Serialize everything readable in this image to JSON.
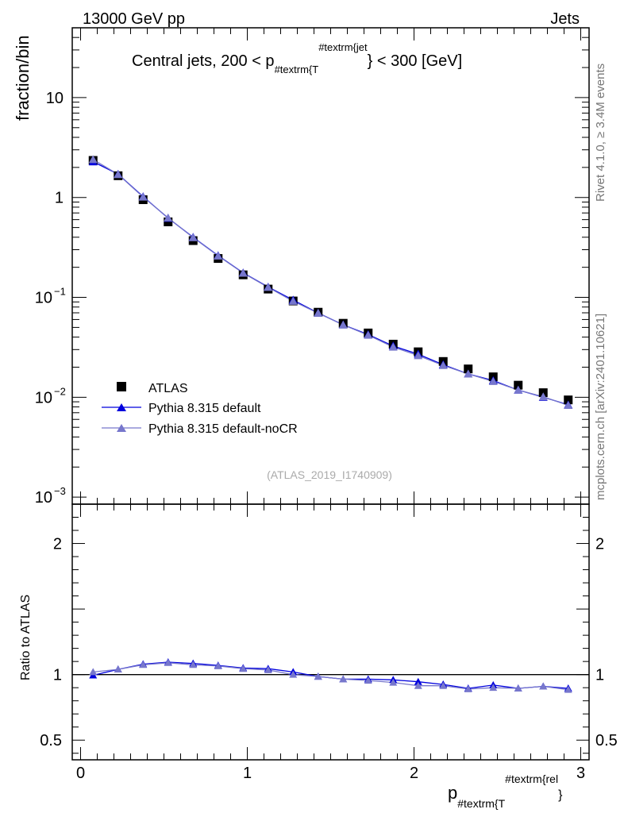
{
  "header": {
    "left_label": "13000 GeV pp",
    "right_label": "Jets"
  },
  "side_labels": {
    "rivet": "Rivet 4.1.0, ≥ 3.4M events",
    "mcplots": "mcplots.cern.ch [arXiv:2401.10621]"
  },
  "chart_data": [
    {
      "type": "scatter",
      "panel": "main",
      "title": "Central jets, 200 < p",
      "title_sub": "#textrm{T",
      "title_sup": "#textrm{jet",
      "title_suffix": "} < 300 [GeV]",
      "xlabel": "p",
      "xlabel_sub": "#textrm{T",
      "xlabel_sup": "#textrm{rel",
      "xlabel_suffix": "}",
      "ylabel": "fraction/bin",
      "yscale": "log",
      "ylim": [
        0.00085,
        50
      ],
      "xlim": [
        -0.05,
        3.05
      ],
      "ytick_labels": [
        {
          "value": 10,
          "base": "10",
          "exp": ""
        },
        {
          "value": 1,
          "base": "1",
          "exp": ""
        },
        {
          "value": 0.1,
          "base": "10",
          "exp": "−1"
        },
        {
          "value": 0.01,
          "base": "10",
          "exp": "−2"
        },
        {
          "value": 0.001,
          "base": "10",
          "exp": "−3"
        }
      ],
      "watermark": "(ATLAS_2019_I1740909)",
      "legend_position": "center-left",
      "x": [
        0.075,
        0.225,
        0.375,
        0.525,
        0.675,
        0.825,
        0.975,
        1.125,
        1.275,
        1.425,
        1.575,
        1.725,
        1.875,
        2.025,
        2.175,
        2.325,
        2.475,
        2.625,
        2.775,
        2.925
      ],
      "series": [
        {
          "name": "ATLAS",
          "marker": "square",
          "color": "#000000",
          "values": [
            2.35,
            1.65,
            0.95,
            0.57,
            0.37,
            0.245,
            0.168,
            0.121,
            0.092,
            0.071,
            0.055,
            0.044,
            0.034,
            0.0285,
            0.0228,
            0.0192,
            0.016,
            0.0132,
            0.0111,
            0.0094
          ]
        },
        {
          "name": "Pythia 8.315 default",
          "marker": "triangle",
          "color": "#0000dd",
          "values": [
            2.28,
            1.71,
            1.02,
            0.62,
            0.4,
            0.262,
            0.176,
            0.127,
            0.094,
            0.0697,
            0.0531,
            0.0424,
            0.0326,
            0.027,
            0.0212,
            0.0171,
            0.0147,
            0.0118,
            0.01,
            0.0084
          ]
        },
        {
          "name": "Pythia 8.315 default-noCR",
          "marker": "triangle",
          "color": "#7777cc",
          "values": [
            2.4,
            1.7,
            1.01,
            0.625,
            0.397,
            0.26,
            0.175,
            0.126,
            0.0915,
            0.0695,
            0.053,
            0.0418,
            0.0318,
            0.0261,
            0.0208,
            0.0171,
            0.0144,
            0.0118,
            0.0101,
            0.0083
          ]
        }
      ]
    },
    {
      "type": "line",
      "panel": "ratio",
      "ylabel": "Ratio to ATLAS",
      "ylim": [
        0.35,
        2.3
      ],
      "xlim": [
        -0.05,
        3.05
      ],
      "yticks": [
        0.5,
        1,
        2
      ],
      "ytick_labels": [
        "0.5",
        "1",
        "2"
      ],
      "xticks": [
        0,
        1,
        2,
        3
      ],
      "xtick_labels": [
        "0",
        "1",
        "2",
        "3"
      ],
      "reference_line": 1,
      "x": [
        0.075,
        0.225,
        0.375,
        0.525,
        0.675,
        0.825,
        0.975,
        1.125,
        1.275,
        1.425,
        1.575,
        1.725,
        1.875,
        2.025,
        2.175,
        2.325,
        2.475,
        2.625,
        2.775,
        2.925
      ],
      "series": [
        {
          "name": "Pythia 8.315 default",
          "color": "#0000dd",
          "values": [
            0.995,
            1.04,
            1.08,
            1.095,
            1.085,
            1.07,
            1.05,
            1.045,
            1.02,
            0.985,
            0.965,
            0.965,
            0.96,
            0.945,
            0.925,
            0.895,
            0.92,
            0.895,
            0.91,
            0.895
          ]
        },
        {
          "name": "Pythia 8.315 default-noCR",
          "color": "#7777cc",
          "values": [
            1.02,
            1.04,
            1.075,
            1.09,
            1.075,
            1.065,
            1.045,
            1.035,
            1.0,
            0.985,
            0.965,
            0.955,
            0.94,
            0.915,
            0.915,
            0.89,
            0.9,
            0.895,
            0.91,
            0.885
          ]
        }
      ]
    }
  ]
}
